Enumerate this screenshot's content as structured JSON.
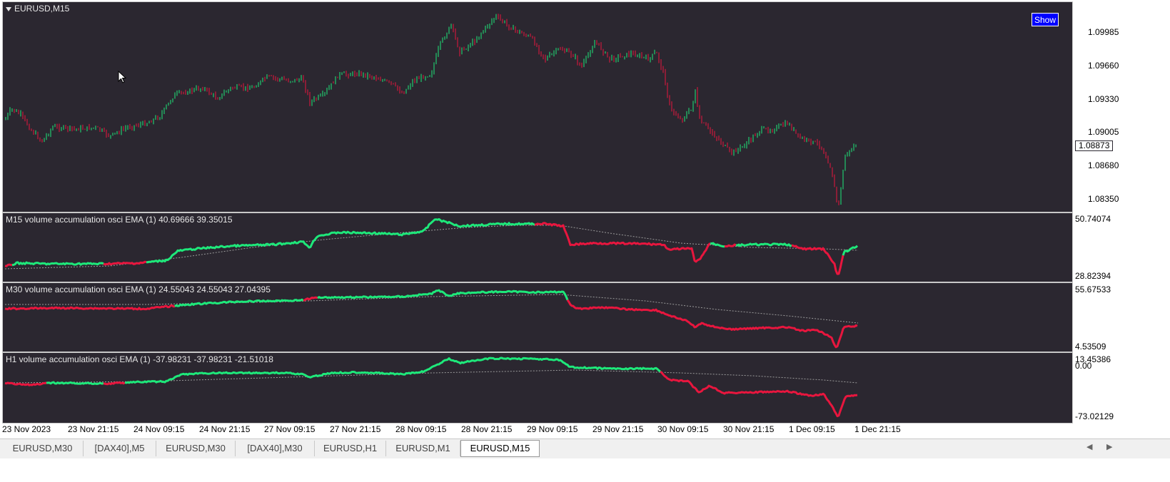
{
  "main_chart": {
    "symbol_title": "EURUSD,M15",
    "show_button": "Show",
    "price_labels": [
      "1.09985",
      "1.09660",
      "1.09330",
      "1.09005",
      "1.08680",
      "1.08350"
    ],
    "current_price": "1.08873",
    "colors": {
      "background": "#2b2730",
      "bull": "#1ee87a",
      "bear": "#e8163e"
    }
  },
  "indicators": [
    {
      "title": "M15 volume accumulation osci EMA (1) 40.69666 39.35015",
      "axis_max": "50.74074",
      "axis_min": "28.82394"
    },
    {
      "title": "M30 volume accumulation osci EMA (1) 24.55043 24.55043 27.04395",
      "axis_max": "55.67533",
      "axis_min": "4.53509"
    },
    {
      "title": "H1 volume accumulation osci EMA (1) -37.98231 -37.98231 -21.51018",
      "axis_max": "13.45386",
      "axis_zero": "0.00",
      "axis_min": "-73.02129"
    }
  ],
  "time_axis": [
    "23 Nov 2023",
    "23 Nov 21:15",
    "24 Nov 09:15",
    "24 Nov 21:15",
    "27 Nov 09:15",
    "27 Nov 21:15",
    "28 Nov 09:15",
    "28 Nov 21:15",
    "29 Nov 09:15",
    "29 Nov 21:15",
    "30 Nov 09:15",
    "30 Nov 21:15",
    "1 Dec 09:15",
    "1 Dec 21:15"
  ],
  "tabs": [
    "EURUSD,M30",
    "[DAX40],M5",
    "EURUSD,M30",
    "[DAX40],M30",
    "EURUSD,H1",
    "EURUSD,M1",
    "EURUSD,M15"
  ],
  "active_tab": 6
}
